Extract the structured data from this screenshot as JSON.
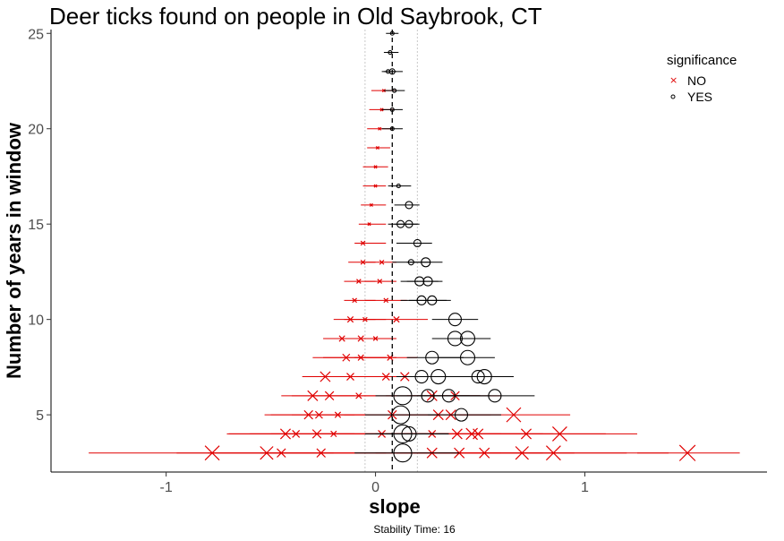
{
  "chart_data": {
    "type": "scatter",
    "title": "Deer ticks found on people in Old Saybrook, CT",
    "xlabel": "slope",
    "ylabel": "Number of years in window",
    "caption": "Stability Time: 16",
    "xlim": [
      -1.55,
      1.87
    ],
    "ylim": [
      2.0,
      25.2
    ],
    "x_ticks": [
      -1,
      0,
      1
    ],
    "y_ticks": [
      5,
      10,
      15,
      20,
      25
    ],
    "grid": false,
    "reference_lines": {
      "dashed": 0.08,
      "dotted": [
        -0.05,
        0.2
      ]
    },
    "legend": {
      "title": "significance",
      "position": "right",
      "entries": [
        {
          "label": "NO",
          "marker": "x",
          "color": "#e00000"
        },
        {
          "label": "YES",
          "marker": "circle",
          "color": "#000000"
        }
      ]
    },
    "series": [
      {
        "name": "NO",
        "color": "#e00000",
        "marker": "x",
        "points": [
          {
            "y": 3,
            "x": -0.78,
            "xmin": -1.37,
            "xmax": -0.2,
            "size": 10
          },
          {
            "y": 3,
            "x": -0.52,
            "xmin": -0.95,
            "xmax": -0.1,
            "size": 9
          },
          {
            "y": 3,
            "x": -0.45,
            "xmin": -0.8,
            "xmax": -0.1,
            "size": 6
          },
          {
            "y": 3,
            "x": -0.26,
            "xmin": -0.55,
            "xmax": 0.05,
            "size": 6
          },
          {
            "y": 3,
            "x": 0.27,
            "xmin": -0.1,
            "xmax": 0.6,
            "size": 7
          },
          {
            "y": 3,
            "x": 0.4,
            "xmin": 0.0,
            "xmax": 0.8,
            "size": 7
          },
          {
            "y": 3,
            "x": 0.52,
            "xmin": 0.1,
            "xmax": 0.95,
            "size": 7
          },
          {
            "y": 3,
            "x": 0.7,
            "xmin": 0.2,
            "xmax": 1.2,
            "size": 9
          },
          {
            "y": 3,
            "x": 0.85,
            "xmin": 0.3,
            "xmax": 1.4,
            "size": 10
          },
          {
            "y": 3,
            "x": 1.49,
            "xmin": 1.25,
            "xmax": 1.74,
            "size": 11
          },
          {
            "y": 4,
            "x": -0.43,
            "xmin": -0.71,
            "xmax": -0.1,
            "size": 7
          },
          {
            "y": 4,
            "x": -0.38,
            "xmin": -0.7,
            "xmax": -0.05,
            "size": 5
          },
          {
            "y": 4,
            "x": -0.28,
            "xmin": -0.6,
            "xmax": 0.0,
            "size": 6
          },
          {
            "y": 4,
            "x": -0.2,
            "xmin": -0.5,
            "xmax": 0.1,
            "size": 4
          },
          {
            "y": 4,
            "x": 0.03,
            "xmin": -0.3,
            "xmax": 0.35,
            "size": 5
          },
          {
            "y": 4,
            "x": 0.27,
            "xmin": -0.05,
            "xmax": 0.6,
            "size": 5
          },
          {
            "y": 4,
            "x": 0.39,
            "xmin": 0.05,
            "xmax": 0.7,
            "size": 7
          },
          {
            "y": 4,
            "x": 0.46,
            "xmin": 0.1,
            "xmax": 0.8,
            "size": 8
          },
          {
            "y": 4,
            "x": 0.49,
            "xmin": 0.15,
            "xmax": 0.85,
            "size": 7
          },
          {
            "y": 4,
            "x": 0.72,
            "xmin": 0.3,
            "xmax": 1.1,
            "size": 7
          },
          {
            "y": 4,
            "x": 0.88,
            "xmin": 0.5,
            "xmax": 1.25,
            "size": 10
          },
          {
            "y": 5,
            "x": -0.32,
            "xmin": -0.53,
            "xmax": -0.1,
            "size": 6
          },
          {
            "y": 5,
            "x": -0.27,
            "xmin": -0.5,
            "xmax": -0.05,
            "size": 5
          },
          {
            "y": 5,
            "x": -0.18,
            "xmin": -0.4,
            "xmax": 0.05,
            "size": 4
          },
          {
            "y": 5,
            "x": 0.08,
            "xmin": -0.15,
            "xmax": 0.3,
            "size": 6
          },
          {
            "y": 5,
            "x": 0.3,
            "xmin": 0.05,
            "xmax": 0.55,
            "size": 7
          },
          {
            "y": 5,
            "x": 0.36,
            "xmin": 0.1,
            "xmax": 0.6,
            "size": 7
          },
          {
            "y": 5,
            "x": 0.66,
            "xmin": 0.4,
            "xmax": 0.93,
            "size": 10
          },
          {
            "y": 6,
            "x": -0.3,
            "xmin": -0.45,
            "xmax": -0.1,
            "size": 7
          },
          {
            "y": 6,
            "x": -0.22,
            "xmin": -0.4,
            "xmax": 0.0,
            "size": 6
          },
          {
            "y": 6,
            "x": -0.08,
            "xmin": -0.3,
            "xmax": 0.1,
            "size": 4
          },
          {
            "y": 6,
            "x": 0.27,
            "xmin": 0.05,
            "xmax": 0.5,
            "size": 7
          },
          {
            "y": 6,
            "x": 0.38,
            "xmin": 0.15,
            "xmax": 0.6,
            "size": 6
          },
          {
            "y": 7,
            "x": -0.24,
            "xmin": -0.35,
            "xmax": -0.1,
            "size": 7
          },
          {
            "y": 7,
            "x": -0.12,
            "xmin": -0.3,
            "xmax": 0.05,
            "size": 5
          },
          {
            "y": 7,
            "x": 0.05,
            "xmin": -0.15,
            "xmax": 0.25,
            "size": 5
          },
          {
            "y": 7,
            "x": 0.14,
            "xmin": -0.05,
            "xmax": 0.35,
            "size": 6
          },
          {
            "y": 8,
            "x": -0.14,
            "xmin": -0.3,
            "xmax": 0.05,
            "size": 5
          },
          {
            "y": 8,
            "x": -0.07,
            "xmin": -0.25,
            "xmax": 0.1,
            "size": 4
          },
          {
            "y": 8,
            "x": 0.07,
            "xmin": -0.1,
            "xmax": 0.2,
            "size": 4
          },
          {
            "y": 9,
            "x": -0.16,
            "xmin": -0.25,
            "xmax": 0.0,
            "size": 4
          },
          {
            "y": 9,
            "x": -0.07,
            "xmin": -0.2,
            "xmax": 0.05,
            "size": 4
          },
          {
            "y": 9,
            "x": 0.0,
            "xmin": -0.1,
            "xmax": 0.1,
            "size": 3
          },
          {
            "y": 10,
            "x": -0.12,
            "xmin": -0.2,
            "xmax": 0.0,
            "size": 4
          },
          {
            "y": 10,
            "x": -0.05,
            "xmin": -0.15,
            "xmax": 0.05,
            "size": 3
          },
          {
            "y": 10,
            "x": 0.1,
            "xmin": -0.05,
            "xmax": 0.25,
            "size": 4
          },
          {
            "y": 11,
            "x": -0.1,
            "xmin": -0.15,
            "xmax": 0.0,
            "size": 3
          },
          {
            "y": 11,
            "x": 0.05,
            "xmin": -0.05,
            "xmax": 0.15,
            "size": 3
          },
          {
            "y": 12,
            "x": -0.08,
            "xmin": -0.15,
            "xmax": 0.0,
            "size": 3
          },
          {
            "y": 12,
            "x": 0.02,
            "xmin": -0.05,
            "xmax": 0.1,
            "size": 3
          },
          {
            "y": 13,
            "x": -0.06,
            "xmin": -0.13,
            "xmax": 0.0,
            "size": 3
          },
          {
            "y": 13,
            "x": 0.03,
            "xmin": -0.05,
            "xmax": 0.1,
            "size": 3
          },
          {
            "y": 14,
            "x": -0.06,
            "xmin": -0.1,
            "xmax": 0.05,
            "size": 3
          },
          {
            "y": 15,
            "x": -0.03,
            "xmin": -0.08,
            "xmax": 0.05,
            "size": 2
          },
          {
            "y": 16,
            "x": -0.02,
            "xmin": -0.07,
            "xmax": 0.05,
            "size": 2
          },
          {
            "y": 17,
            "x": 0.0,
            "xmin": -0.06,
            "xmax": 0.05,
            "size": 2
          },
          {
            "y": 18,
            "x": 0.0,
            "xmin": -0.06,
            "xmax": 0.06,
            "size": 2
          },
          {
            "y": 19,
            "x": 0.01,
            "xmin": -0.04,
            "xmax": 0.07,
            "size": 2
          },
          {
            "y": 20,
            "x": 0.02,
            "xmin": -0.04,
            "xmax": 0.08,
            "size": 2
          },
          {
            "y": 21,
            "x": 0.03,
            "xmin": -0.03,
            "xmax": 0.09,
            "size": 2
          },
          {
            "y": 22,
            "x": 0.04,
            "xmin": -0.02,
            "xmax": 0.1,
            "size": 2
          }
        ]
      },
      {
        "name": "YES",
        "color": "#000000",
        "marker": "circle",
        "points": [
          {
            "y": 3,
            "x": 0.13,
            "xmin": -0.1,
            "xmax": 0.4,
            "size": 10
          },
          {
            "y": 4,
            "x": 0.13,
            "xmin": -0.05,
            "xmax": 0.35,
            "size": 10
          },
          {
            "y": 4,
            "x": 0.16,
            "xmin": 0.0,
            "xmax": 0.35,
            "size": 8
          },
          {
            "y": 5,
            "x": 0.12,
            "xmin": -0.05,
            "xmax": 0.3,
            "size": 10
          },
          {
            "y": 5,
            "x": 0.41,
            "xmin": 0.25,
            "xmax": 0.6,
            "size": 7
          },
          {
            "y": 6,
            "x": 0.13,
            "xmin": 0.0,
            "xmax": 0.45,
            "size": 10
          },
          {
            "y": 6,
            "x": 0.25,
            "xmin": 0.1,
            "xmax": 0.5,
            "size": 7
          },
          {
            "y": 6,
            "x": 0.35,
            "xmin": 0.2,
            "xmax": 0.55,
            "size": 7
          },
          {
            "y": 6,
            "x": 0.57,
            "xmin": 0.38,
            "xmax": 0.76,
            "size": 7
          },
          {
            "y": 7,
            "x": 0.22,
            "xmin": 0.1,
            "xmax": 0.4,
            "size": 7
          },
          {
            "y": 7,
            "x": 0.3,
            "xmin": 0.15,
            "xmax": 0.45,
            "size": 8
          },
          {
            "y": 7,
            "x": 0.49,
            "xmin": 0.3,
            "xmax": 0.63,
            "size": 7
          },
          {
            "y": 7,
            "x": 0.52,
            "xmin": 0.35,
            "xmax": 0.66,
            "size": 8
          },
          {
            "y": 8,
            "x": 0.27,
            "xmin": 0.15,
            "xmax": 0.42,
            "size": 7
          },
          {
            "y": 8,
            "x": 0.44,
            "xmin": 0.3,
            "xmax": 0.57,
            "size": 8
          },
          {
            "y": 9,
            "x": 0.38,
            "xmin": 0.27,
            "xmax": 0.52,
            "size": 8
          },
          {
            "y": 9,
            "x": 0.44,
            "xmin": 0.3,
            "xmax": 0.55,
            "size": 8
          },
          {
            "y": 10,
            "x": 0.38,
            "xmin": 0.27,
            "xmax": 0.49,
            "size": 7
          },
          {
            "y": 11,
            "x": 0.22,
            "xmin": 0.12,
            "xmax": 0.34,
            "size": 5
          },
          {
            "y": 11,
            "x": 0.27,
            "xmin": 0.16,
            "xmax": 0.36,
            "size": 5
          },
          {
            "y": 12,
            "x": 0.21,
            "xmin": 0.12,
            "xmax": 0.3,
            "size": 5
          },
          {
            "y": 12,
            "x": 0.25,
            "xmin": 0.15,
            "xmax": 0.32,
            "size": 5
          },
          {
            "y": 13,
            "x": 0.17,
            "xmin": 0.08,
            "xmax": 0.26,
            "size": 3
          },
          {
            "y": 13,
            "x": 0.24,
            "xmin": 0.15,
            "xmax": 0.32,
            "size": 5
          },
          {
            "y": 14,
            "x": 0.2,
            "xmin": 0.1,
            "xmax": 0.27,
            "size": 4
          },
          {
            "y": 15,
            "x": 0.12,
            "xmin": 0.06,
            "xmax": 0.2,
            "size": 4
          },
          {
            "y": 15,
            "x": 0.16,
            "xmin": 0.09,
            "xmax": 0.21,
            "size": 4
          },
          {
            "y": 16,
            "x": 0.16,
            "xmin": 0.09,
            "xmax": 0.21,
            "size": 4
          },
          {
            "y": 17,
            "x": 0.11,
            "xmin": 0.06,
            "xmax": 0.17,
            "size": 2
          },
          {
            "y": 20,
            "x": 0.08,
            "xmin": 0.03,
            "xmax": 0.13,
            "size": 2
          },
          {
            "y": 21,
            "x": 0.08,
            "xmin": 0.03,
            "xmax": 0.13,
            "size": 2
          },
          {
            "y": 22,
            "x": 0.09,
            "xmin": 0.04,
            "xmax": 0.14,
            "size": 2
          },
          {
            "y": 23,
            "x": 0.08,
            "xmin": 0.04,
            "xmax": 0.13,
            "size": 3
          },
          {
            "y": 23,
            "x": 0.06,
            "xmin": 0.03,
            "xmax": 0.1,
            "size": 2
          },
          {
            "y": 24,
            "x": 0.07,
            "xmin": 0.04,
            "xmax": 0.11,
            "size": 2
          },
          {
            "y": 25,
            "x": 0.08,
            "xmin": 0.05,
            "xmax": 0.11,
            "size": 2
          }
        ]
      }
    ]
  }
}
